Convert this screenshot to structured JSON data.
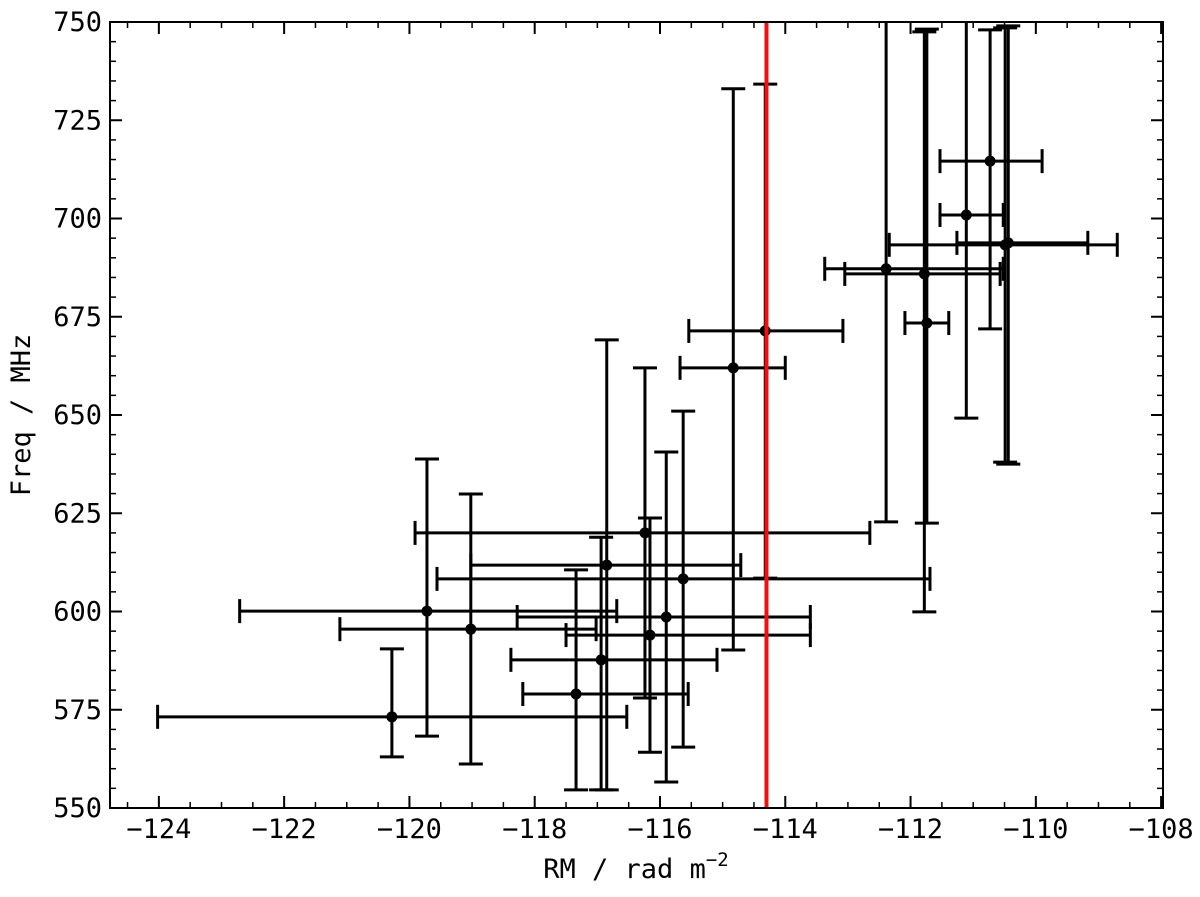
{
  "chart_data": {
    "type": "errorbar",
    "xlabel": "RM / rad m",
    "xlabel_exponent": "−2",
    "ylabel": "Freq / MHz",
    "xlim": [
      -124.78,
      -107.97
    ],
    "ylim": [
      550,
      750
    ],
    "xticks": [
      {
        "value": -124,
        "label": "−124"
      },
      {
        "value": -122,
        "label": "−122"
      },
      {
        "value": -120,
        "label": "−120"
      },
      {
        "value": -118,
        "label": "−118"
      },
      {
        "value": -116,
        "label": "−116"
      },
      {
        "value": -114,
        "label": "−114"
      },
      {
        "value": -112,
        "label": "−112"
      },
      {
        "value": -110,
        "label": "−110"
      },
      {
        "value": -108,
        "label": "−108"
      }
    ],
    "yticks": [
      550,
      575,
      600,
      625,
      650,
      675,
      700,
      725,
      750
    ],
    "xminor": 0.5,
    "yminor": 5,
    "color": "#000000",
    "vline": {
      "x": -114.3,
      "color": "#ee1111"
    },
    "x": [
      -120.28,
      -119.72,
      -119.02,
      -117.34,
      -116.94,
      -116.85,
      -116.24,
      -116.16,
      -115.9,
      -115.63,
      -114.83,
      -114.32,
      -112.39,
      -111.78,
      -111.74,
      -111.11,
      -110.73,
      -110.49,
      -110.44
    ],
    "y": [
      573.2,
      600.1,
      595.5,
      579.0,
      587.7,
      611.8,
      620.0,
      594.0,
      598.6,
      608.3,
      662.0,
      671.4,
      687.2,
      685.9,
      673.4,
      700.9,
      714.6,
      693.3,
      693.8
    ],
    "xmin": [
      -124.02,
      -122.71,
      -121.11,
      -118.19,
      -118.38,
      -119.02,
      -119.91,
      -117.5,
      -118.28,
      -119.56,
      -115.68,
      -115.54,
      -113.37,
      -113.05,
      -112.09,
      -111.53,
      -111.53,
      -112.34,
      -111.26
    ],
    "xmax": [
      -116.53,
      -116.69,
      -117.02,
      -115.55,
      -115.09,
      -114.71,
      -112.65,
      -113.6,
      -113.6,
      -111.69,
      -114.0,
      -113.08,
      -110.52,
      -110.57,
      -111.39,
      -110.52,
      -109.9,
      -108.7,
      -109.17
    ],
    "ymin": [
      563.0,
      568.3,
      561.2,
      554.6,
      554.6,
      554.6,
      578.0,
      564.2,
      556.6,
      565.5,
      590.2,
      608.5,
      622.8,
      599.9,
      622.5,
      649.2,
      671.9,
      638.0,
      637.5
    ],
    "ymax": [
      590.5,
      638.8,
      629.9,
      610.6,
      618.9,
      669.1,
      662.0,
      623.8,
      640.6,
      651.0,
      733.0,
      734.2,
      760,
      747.5,
      748.2,
      760,
      748.0,
      748.5,
      749.0
    ]
  }
}
